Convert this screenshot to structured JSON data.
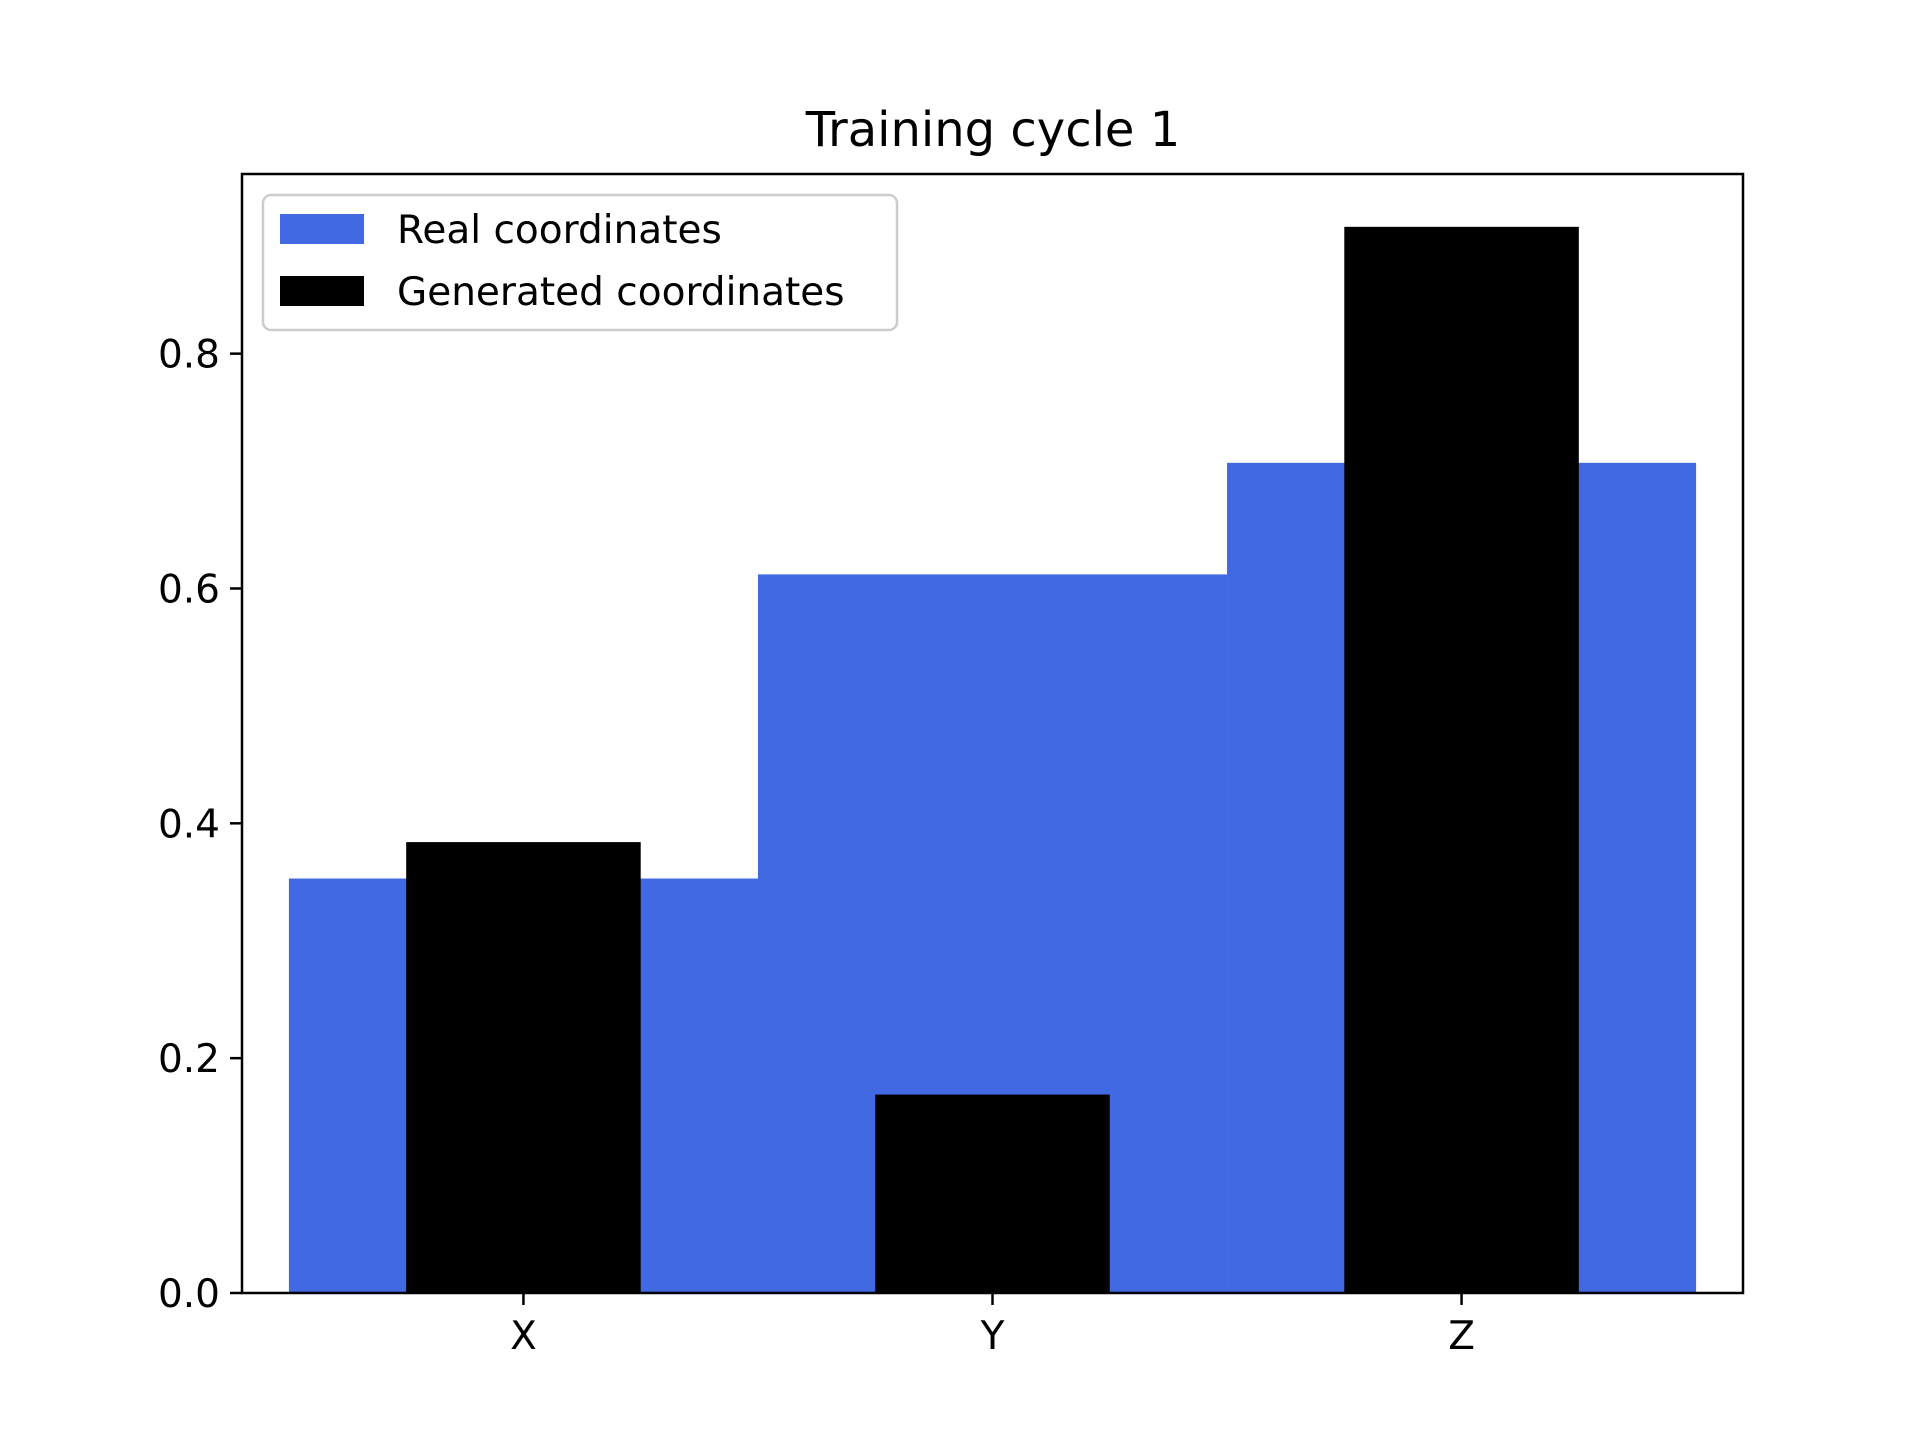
{
  "chart_data": {
    "type": "bar",
    "title": "Training cycle 1",
    "categories": [
      "X",
      "Y",
      "Z"
    ],
    "xlabel": "",
    "ylabel": "",
    "ylim": [
      0,
      0.953
    ],
    "yticks": [
      "0.0",
      "0.2",
      "0.4",
      "0.6",
      "0.8"
    ],
    "ytick_values": [
      0.0,
      0.2,
      0.4,
      0.6,
      0.8
    ],
    "grid": false,
    "legend_position": "upper-left",
    "series": [
      {
        "name": "Real coordinates",
        "color": "#4169e1",
        "values": [
          0.353,
          0.612,
          0.707
        ]
      },
      {
        "name": "Generated coordinates",
        "color": "#000000",
        "values": [
          0.384,
          0.169,
          0.908
        ]
      }
    ]
  }
}
